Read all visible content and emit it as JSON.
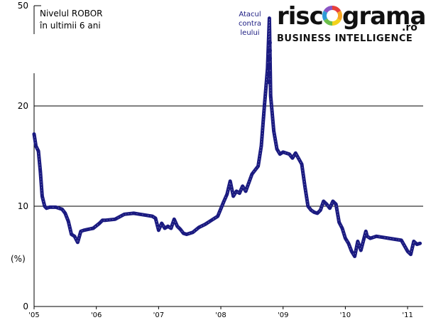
{
  "logo": {
    "main_left": "risc",
    "main_right": "grama",
    "suffix": ".ro",
    "tagline": "BUSINESS INTELLIGENCE",
    "ring_colors": [
      "#e8403a",
      "#f6a623",
      "#f3d21b",
      "#6bbf4a",
      "#2d9bd7",
      "#8a55c4"
    ]
  },
  "colors": {
    "series": "#1a1a80",
    "grid": "#000000",
    "annotation": "#1a1a80"
  },
  "chart_data": {
    "type": "line",
    "title": [
      "Nivelul ROBOR",
      "în ultimii 6 ani"
    ],
    "ylabel": "(%)",
    "xlabel": "",
    "ylim": [
      0,
      50
    ],
    "y_scale_note": "axis broken between 23 and 50",
    "yticks": [
      0,
      10,
      20,
      50
    ],
    "gridlines": [
      10,
      20
    ],
    "xticks": [
      {
        "label": "'05",
        "x": 2005
      },
      {
        "label": "'06",
        "x": 2006
      },
      {
        "label": "'07",
        "x": 2007
      },
      {
        "label": "'08",
        "x": 2008
      },
      {
        "label": "'09",
        "x": 2009
      },
      {
        "label": "'10",
        "x": 2010
      },
      {
        "label": "'11",
        "x": 2011
      }
    ],
    "annotation": {
      "lines": [
        "Atacul",
        "contra",
        "leului"
      ],
      "x": 2008.78
    },
    "spike_dots": 6,
    "series": [
      {
        "name": "ROBOR",
        "x": [
          2005.0,
          2005.03,
          2005.07,
          2005.1,
          2005.13,
          2005.17,
          2005.2,
          2005.25,
          2005.35,
          2005.45,
          2005.5,
          2005.55,
          2005.6,
          2005.65,
          2005.7,
          2005.75,
          2005.8,
          2005.87,
          2005.95,
          2006.05,
          2006.1,
          2006.15,
          2006.3,
          2006.45,
          2006.6,
          2006.7,
          2006.8,
          2006.9,
          2006.95,
          2007.0,
          2007.05,
          2007.1,
          2007.15,
          2007.2,
          2007.25,
          2007.3,
          2007.35,
          2007.4,
          2007.45,
          2007.55,
          2007.65,
          2007.75,
          2007.85,
          2007.95,
          2008.05,
          2008.1,
          2008.15,
          2008.2,
          2008.25,
          2008.3,
          2008.35,
          2008.4,
          2008.5,
          2008.6,
          2008.65,
          2008.7,
          2008.75,
          2008.78,
          2008.8,
          2008.85,
          2008.9,
          2008.95,
          2009.0,
          2009.1,
          2009.15,
          2009.2,
          2009.3,
          2009.35,
          2009.4,
          2009.45,
          2009.5,
          2009.55,
          2009.6,
          2009.65,
          2009.7,
          2009.75,
          2009.8,
          2009.85,
          2009.9,
          2009.95,
          2010.0,
          2010.05,
          2010.1,
          2010.15,
          2010.2,
          2010.25,
          2010.3,
          2010.33,
          2010.35,
          2010.4,
          2010.5,
          2010.6,
          2010.7,
          2010.8,
          2010.9,
          2011.0,
          2011.05,
          2011.1,
          2011.15,
          2011.2
        ],
        "values": [
          17.2,
          16.0,
          15.5,
          13.5,
          11.0,
          10.0,
          9.8,
          9.9,
          9.9,
          9.7,
          9.3,
          8.5,
          7.2,
          7.0,
          6.4,
          7.5,
          7.6,
          7.7,
          7.8,
          8.3,
          8.6,
          8.6,
          8.7,
          9.2,
          9.3,
          9.2,
          9.1,
          9.0,
          8.8,
          7.6,
          8.3,
          7.8,
          8.0,
          7.8,
          8.7,
          8.0,
          7.7,
          7.3,
          7.2,
          7.4,
          7.9,
          8.2,
          8.6,
          9.0,
          10.5,
          11.2,
          12.5,
          11.0,
          11.5,
          11.3,
          12.0,
          11.5,
          13.2,
          14.0,
          16.0,
          20.0,
          25.0,
          45.0,
          21.0,
          17.5,
          15.7,
          15.2,
          15.4,
          15.2,
          14.8,
          15.3,
          14.2,
          12.0,
          10.0,
          9.6,
          9.4,
          9.3,
          9.6,
          10.5,
          10.2,
          9.8,
          10.5,
          10.2,
          8.4,
          7.8,
          6.8,
          6.3,
          5.5,
          5.0,
          6.5,
          5.6,
          6.8,
          7.5,
          7.0,
          6.8,
          7.0,
          6.9,
          6.8,
          6.7,
          6.6,
          5.5,
          5.2,
          6.5,
          6.2,
          6.3
        ]
      }
    ]
  }
}
